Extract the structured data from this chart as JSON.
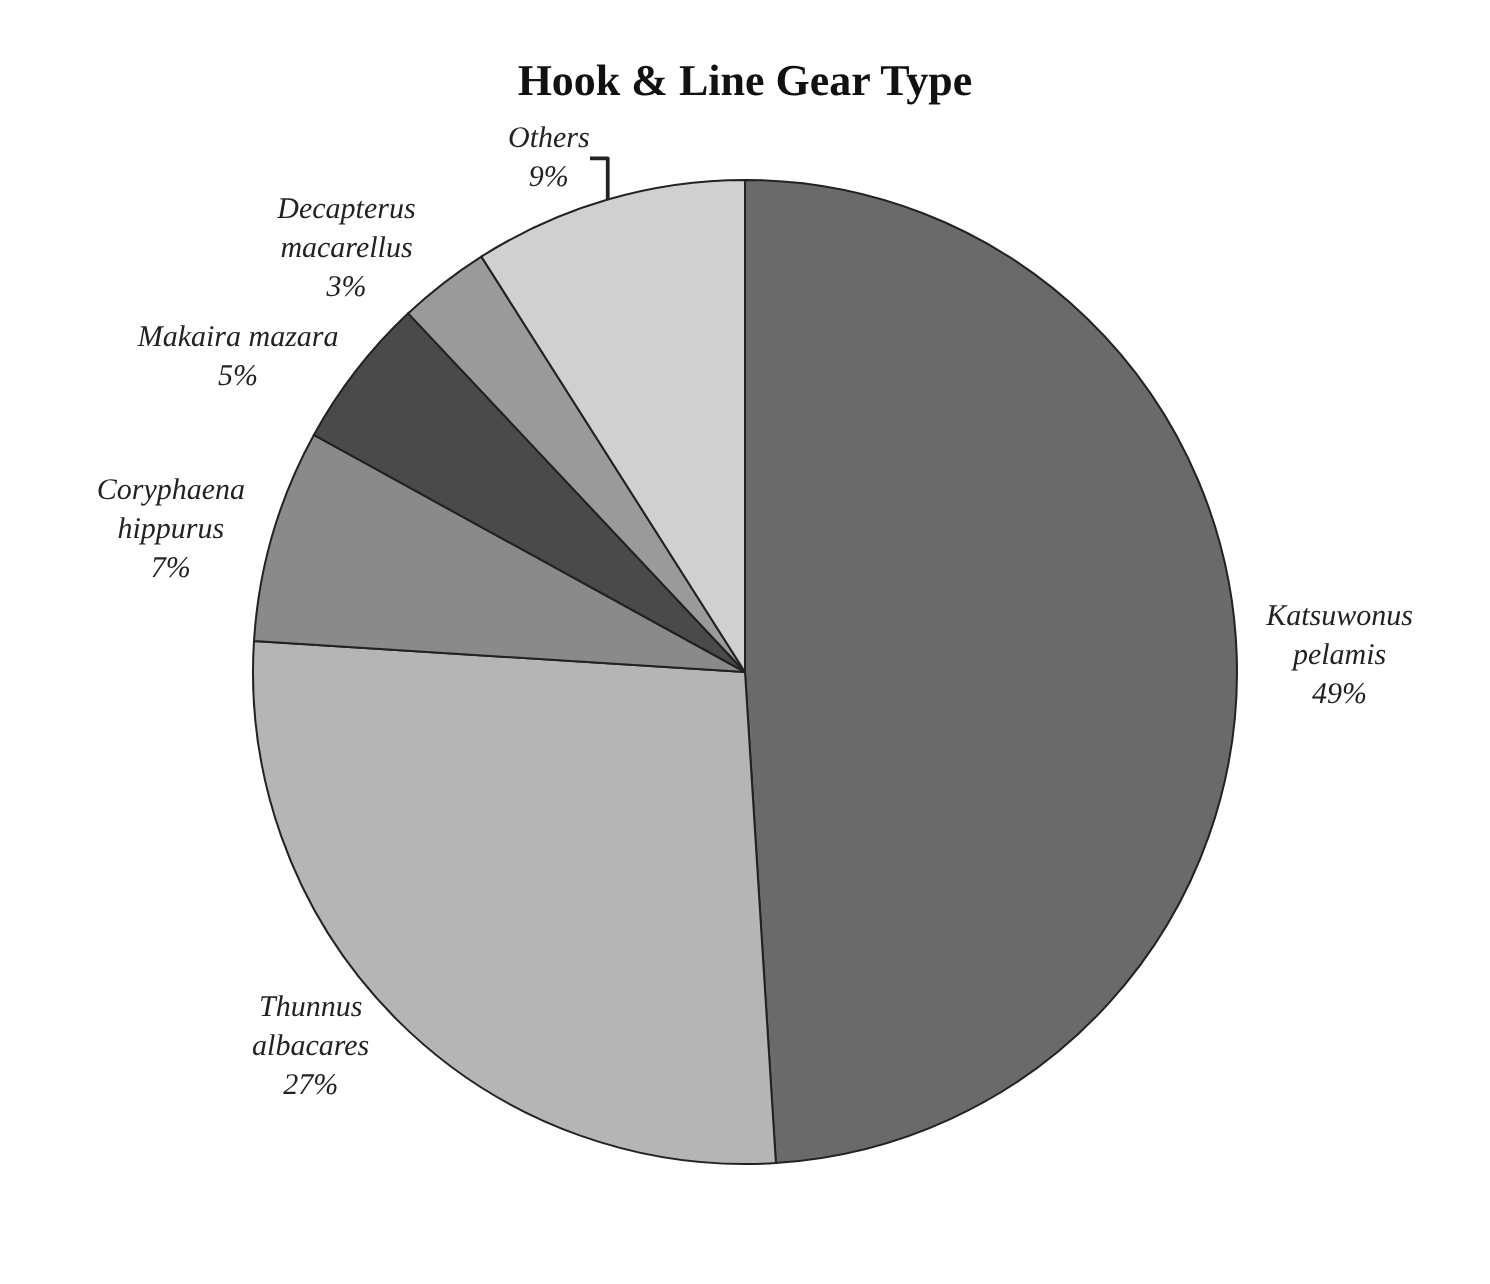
{
  "chart_data": {
    "type": "pie",
    "title": "Hook & Line Gear Type",
    "categories": [
      "Katsuwonus\npelamis",
      "Thunnus\nalbacares",
      "Coryphaena\nhippurus",
      "Makaira mazara",
      "Decapterus\nmacarellus",
      "Others"
    ],
    "values": [
      49,
      27,
      7,
      5,
      3,
      9
    ],
    "value_labels": [
      "49%",
      "27%",
      "7%",
      "5%",
      "3%",
      "9%"
    ],
    "colors": [
      "#6a6a6a",
      "#b5b5b5",
      "#8a8a8a",
      "#4a4a4a",
      "#9a9a9a",
      "#d0d0d0"
    ],
    "legend": false
  }
}
